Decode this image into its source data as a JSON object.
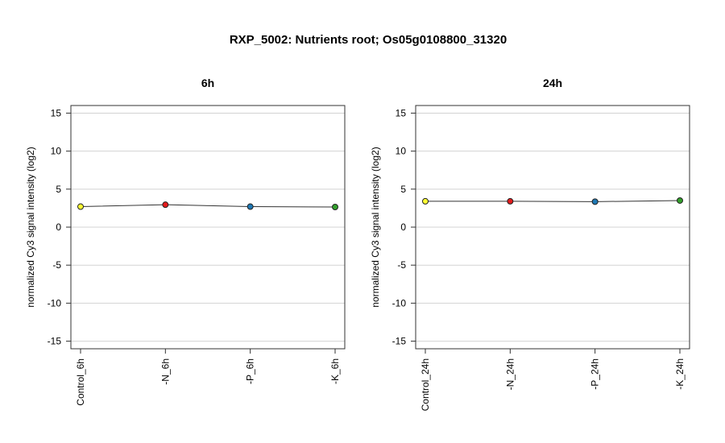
{
  "title": "RXP_5002: Nutrients root; Os05g0108800_31320",
  "chart_data": [
    {
      "type": "line",
      "title": "6h",
      "ylabel": "normalized Cy3 signal intensity (log2)",
      "ylim": [
        -16,
        16
      ],
      "yticks": [
        -15,
        -10,
        -5,
        0,
        5,
        10,
        15
      ],
      "grid": true,
      "categories": [
        "Control_6h",
        "-N_6h",
        "-P_6h",
        "-K_6h"
      ],
      "values": [
        2.7,
        2.95,
        2.7,
        2.65
      ],
      "colors": [
        "#ffff33",
        "#e31a1c",
        "#1f78b4",
        "#33a02c"
      ]
    },
    {
      "type": "line",
      "title": "24h",
      "ylabel": "normalized Cy3 signal intensity (log2)",
      "ylim": [
        -16,
        16
      ],
      "yticks": [
        -15,
        -10,
        -5,
        0,
        5,
        10,
        15
      ],
      "grid": true,
      "categories": [
        "Control_24h",
        "-N_24h",
        "-P_24h",
        "-K_24h"
      ],
      "values": [
        3.4,
        3.4,
        3.35,
        3.5
      ],
      "colors": [
        "#ffff33",
        "#e31a1c",
        "#1f78b4",
        "#33a02c"
      ]
    }
  ]
}
